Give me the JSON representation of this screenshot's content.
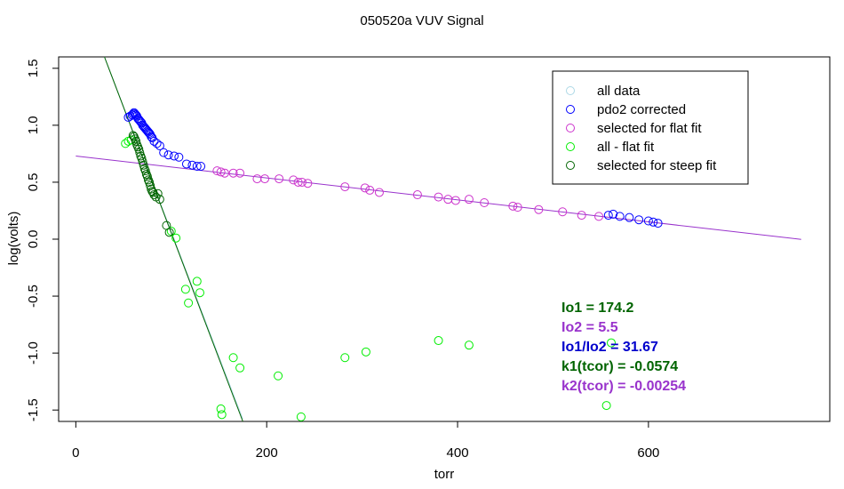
{
  "chart_data": {
    "type": "scatter",
    "title": "050520a   VUV Signal",
    "xlabel": "torr",
    "ylabel": "log(volts)",
    "xlim": [
      -18,
      790
    ],
    "ylim": [
      -1.6,
      1.6
    ],
    "xticks": [
      0,
      200,
      400,
      600
    ],
    "yticks": [
      -1.5,
      -1.0,
      -0.5,
      0.0,
      0.5,
      1.0,
      1.5
    ],
    "xtick_labels": [
      "0",
      "200",
      "400",
      "600"
    ],
    "ytick_labels": [
      "-1.5",
      "-1.0",
      "-0.5",
      "0.0",
      "0.5",
      "1.0",
      "1.5"
    ],
    "grid": false,
    "legend_position": "top-right",
    "legend": [
      {
        "label": "all data",
        "color": "#add8e6"
      },
      {
        "label": "pdo2 corrected",
        "color": "#0000ff"
      },
      {
        "label": "selected for flat fit",
        "color": "#cc33cc"
      },
      {
        "label": "all - flat fit",
        "color": "#00ee00"
      },
      {
        "label": "selected for steep fit",
        "color": "#006400"
      }
    ],
    "series": [
      {
        "name": "pdo2 corrected",
        "color": "#0000ff",
        "x": [
          55,
          57,
          59,
          60,
          61,
          62,
          63,
          64,
          65,
          66,
          67,
          68,
          69,
          70,
          71,
          72,
          73,
          74,
          75,
          76,
          77,
          78,
          79,
          80,
          82,
          85,
          88,
          92,
          97,
          103,
          108,
          116,
          122,
          127,
          131,
          558,
          563,
          570,
          580,
          590,
          600,
          605,
          610
        ],
        "y": [
          1.07,
          1.08,
          1.09,
          1.1,
          1.11,
          1.1,
          1.09,
          1.08,
          1.06,
          1.05,
          1.04,
          1.03,
          1.02,
          1.0,
          0.99,
          0.98,
          0.97,
          0.96,
          0.95,
          0.94,
          0.93,
          0.92,
          0.9,
          0.89,
          0.86,
          0.84,
          0.82,
          0.76,
          0.74,
          0.73,
          0.72,
          0.66,
          0.65,
          0.64,
          0.64,
          0.21,
          0.22,
          0.2,
          0.19,
          0.17,
          0.16,
          0.15,
          0.14
        ]
      },
      {
        "name": "selected for flat fit",
        "color": "#cc33cc",
        "x": [
          148,
          152,
          156,
          165,
          172,
          190,
          198,
          213,
          228,
          233,
          237,
          243,
          282,
          303,
          308,
          318,
          358,
          380,
          390,
          398,
          412,
          428,
          458,
          463,
          485,
          510,
          530,
          548
        ],
        "y": [
          0.6,
          0.59,
          0.58,
          0.58,
          0.58,
          0.53,
          0.53,
          0.53,
          0.52,
          0.5,
          0.5,
          0.49,
          0.46,
          0.45,
          0.43,
          0.41,
          0.39,
          0.37,
          0.35,
          0.34,
          0.35,
          0.32,
          0.29,
          0.28,
          0.26,
          0.24,
          0.21,
          0.2
        ]
      },
      {
        "name": "all - flat fit",
        "color": "#00ee00",
        "x": [
          52,
          55,
          58,
          100,
          105,
          115,
          118,
          127,
          130,
          165,
          172,
          152,
          153,
          212,
          236,
          282,
          304,
          380,
          412,
          556,
          561
        ],
        "y": [
          0.84,
          0.86,
          0.87,
          0.07,
          0.01,
          -0.44,
          -0.56,
          -0.37,
          -0.47,
          -1.04,
          -1.13,
          -1.49,
          -1.54,
          -1.2,
          -1.56,
          -1.04,
          -0.99,
          -0.89,
          -0.93,
          -1.46,
          -0.91
        ]
      },
      {
        "name": "selected for steep fit",
        "color": "#006400",
        "x": [
          60,
          61,
          62,
          63,
          64,
          65,
          66,
          67,
          68,
          69,
          70,
          71,
          72,
          73,
          74,
          75,
          76,
          77,
          78,
          79,
          80,
          81,
          82,
          84,
          86,
          88,
          95,
          98
        ],
        "y": [
          0.91,
          0.9,
          0.88,
          0.86,
          0.83,
          0.81,
          0.79,
          0.76,
          0.73,
          0.71,
          0.68,
          0.65,
          0.62,
          0.6,
          0.57,
          0.55,
          0.52,
          0.5,
          0.47,
          0.44,
          0.42,
          0.41,
          0.39,
          0.37,
          0.4,
          0.35,
          0.12,
          0.06
        ]
      }
    ],
    "fit_lines": [
      {
        "name": "flat fit",
        "color": "#9933cc",
        "x": [
          0,
          760
        ],
        "y": [
          0.73,
          -0.002
        ]
      },
      {
        "name": "all data curve",
        "color": "#add8e6",
        "x": [
          30,
          175
        ],
        "y": [
          1.6,
          -1.58
        ]
      },
      {
        "name": "steep fit",
        "color": "#006400",
        "x": [
          30,
          175
        ],
        "y": [
          1.6,
          -1.6
        ]
      }
    ],
    "annotations": [
      {
        "text": "Io1 =  174.2",
        "color": "#006400"
      },
      {
        "text": "Io2 =  5.5",
        "color": "#9933cc"
      },
      {
        "text": "Io1/Io2 =  31.67",
        "color": "#0000cc"
      },
      {
        "text": "k1(tcor) =  -0.0574",
        "color": "#006400"
      },
      {
        "text": "k2(tcor) =  -0.00254",
        "color": "#9933cc"
      }
    ]
  }
}
